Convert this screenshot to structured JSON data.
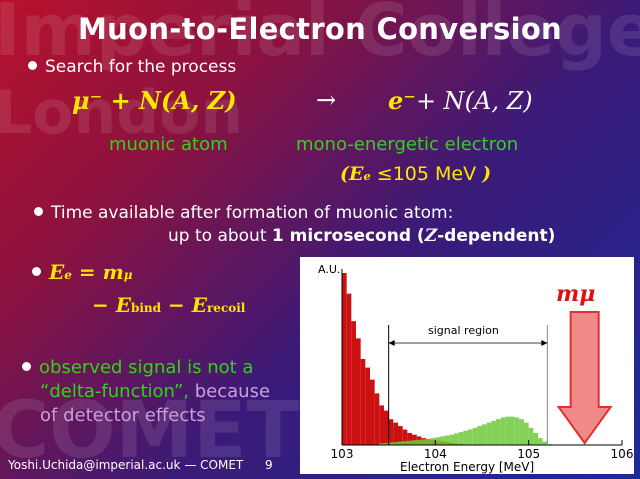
{
  "watermark": {
    "top_text": "Imperial College",
    "middle_text": "London",
    "bottom_text": "COMET"
  },
  "slide": {
    "title": "Muon-to-Electron Conversion",
    "bullet1": "Search for the process",
    "process": {
      "lhs": "μ⁻ + N(A, Z)",
      "arrow": "→",
      "rhs_electron": "e⁻",
      "rhs_nucleus": "+ N(A, Z)"
    },
    "label_muonic_atom": "muonic atom",
    "label_mono_energetic": "mono-energetic electron",
    "energy_condition": {
      "open_paren": "(",
      "symbol": "E",
      "symbol_sub": "e",
      "relation": "≤",
      "value": "105 MeV",
      "close_paren": ")"
    },
    "bullet2_line1": "Time available after formation of muonic atom:",
    "bullet2_line2_prefix": "up to about ",
    "bullet2_line2_bold": "1 microsecond (",
    "bullet2_line2_symbol": "Z",
    "bullet2_line2_suffix": "-dependent)",
    "bullet3": {
      "lhs": "E",
      "lhs_sub": "e",
      "eq": " = m",
      "eq_sub": "μ",
      "line2_a": "− E",
      "line2_a_sub": "bind",
      "line2_b": " − E",
      "line2_b_sub": "recoil"
    },
    "bullet4": {
      "green1": "observed signal is not a",
      "green2": "“delta-function”,",
      "tail1": " because",
      "tail2": "of detector effects"
    }
  },
  "chart_data": {
    "type": "bar",
    "ylabel": "A.U.",
    "xlabel": "Electron Energy [MeV]",
    "xlim": [
      103,
      106
    ],
    "xticks": [
      "103",
      "104",
      "105",
      "106"
    ],
    "annotations": {
      "signal_region": "signal region",
      "muon_mass": "mμ"
    },
    "signal_region_range": [
      103.5,
      105.2
    ],
    "muon_mass_position": 105.6,
    "series": [
      {
        "color": "#cc1111",
        "x": [
          103.0,
          103.05,
          103.1,
          103.15,
          103.2,
          103.25,
          103.3,
          103.35,
          103.4,
          103.45,
          103.5,
          103.55,
          103.6,
          103.65,
          103.7,
          103.75,
          103.8,
          103.85,
          103.9,
          103.95,
          104.0,
          104.05,
          104.1,
          104.15,
          104.2,
          104.25,
          104.3,
          104.35
        ],
        "values": [
          1.0,
          0.88,
          0.72,
          0.62,
          0.5,
          0.45,
          0.38,
          0.3,
          0.23,
          0.2,
          0.15,
          0.13,
          0.11,
          0.09,
          0.07,
          0.06,
          0.05,
          0.04,
          0.035,
          0.03,
          0.025,
          0.02,
          0.016,
          0.012,
          0.008,
          0.006,
          0.004,
          0.002
        ]
      },
      {
        "color": "#6fc93b",
        "x": [
          103.4,
          103.45,
          103.5,
          103.55,
          103.6,
          103.65,
          103.7,
          103.75,
          103.8,
          103.85,
          103.9,
          103.95,
          104.0,
          104.05,
          104.1,
          104.15,
          104.2,
          104.25,
          104.3,
          104.35,
          104.4,
          104.45,
          104.5,
          104.55,
          104.6,
          104.65,
          104.7,
          104.75,
          104.8,
          104.85,
          104.9,
          104.95,
          105.0,
          105.05,
          105.1,
          105.15,
          105.2
        ],
        "values": [
          0.01,
          0.012,
          0.015,
          0.017,
          0.02,
          0.022,
          0.025,
          0.028,
          0.03,
          0.033,
          0.036,
          0.04,
          0.045,
          0.05,
          0.055,
          0.06,
          0.067,
          0.075,
          0.083,
          0.09,
          0.1,
          0.11,
          0.12,
          0.13,
          0.14,
          0.15,
          0.16,
          0.165,
          0.165,
          0.16,
          0.15,
          0.13,
          0.1,
          0.07,
          0.04,
          0.02,
          0.005
        ]
      }
    ]
  },
  "footer": {
    "email": "Yoshi.Uchida@imperial.ac.uk",
    "separator": " — ",
    "event": "COMET",
    "page": "9"
  }
}
